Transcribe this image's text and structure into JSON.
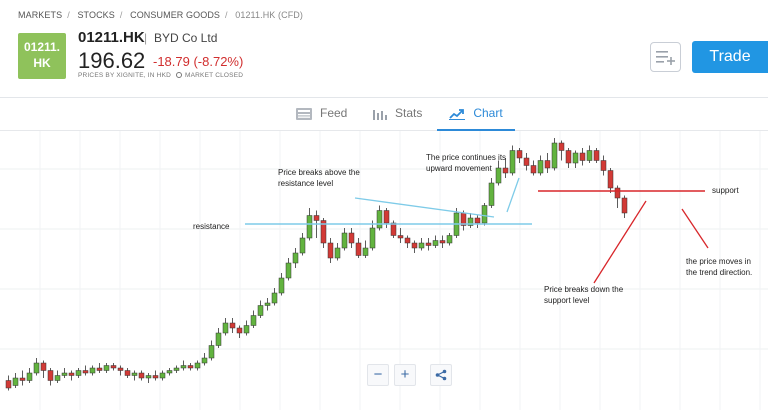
{
  "breadcrumb": [
    "MARKETS",
    "STOCKS",
    "CONSUMER GOODS",
    "01211.HK (CFD)"
  ],
  "tile": {
    "line1": "01211.",
    "line2": "HK",
    "color": "#8fc25b"
  },
  "instrument": {
    "symbol": "01211.HK",
    "company": "BYD Co Ltd",
    "price": "196.62",
    "change": "-18.79 (-8.72%)",
    "prices_by": "PRICES BY XIGNITE, IN HKD",
    "market_status": "MARKET CLOSED"
  },
  "actions": {
    "watchlist_icon": "add-to-list-icon",
    "trade_label": "Trade",
    "trade_color": "#2196e3"
  },
  "tabs": [
    {
      "label": "Feed",
      "icon": "feed-icon",
      "active": false
    },
    {
      "label": "Stats",
      "icon": "stats-icon",
      "active": false
    },
    {
      "label": "Chart",
      "icon": "chart-icon",
      "active": true
    }
  ],
  "annotations": {
    "breaks_above": "Price breaks above the\nresistance level",
    "continues": "The price continues its\nupward movement",
    "resistance": "resistance",
    "support": "support",
    "breaks_down": "Price breaks down the\nsupport level",
    "trend": "the price moves in\nthe trend direction."
  },
  "chart_data": {
    "type": "candlestick",
    "up_color": "#62b33f",
    "down_color": "#d23a36",
    "resistance_color": "#7ecbe8",
    "support_color": "#d8262a",
    "candles": [
      {
        "o": 0.05,
        "c": 0.02,
        "h": 0.07,
        "l": 0.01
      },
      {
        "o": 0.03,
        "c": 0.06,
        "h": 0.08,
        "l": 0.02
      },
      {
        "o": 0.06,
        "c": 0.05,
        "h": 0.09,
        "l": 0.03
      },
      {
        "o": 0.05,
        "c": 0.08,
        "h": 0.1,
        "l": 0.04
      },
      {
        "o": 0.08,
        "c": 0.12,
        "h": 0.14,
        "l": 0.07
      },
      {
        "o": 0.12,
        "c": 0.09,
        "h": 0.13,
        "l": 0.06
      },
      {
        "o": 0.09,
        "c": 0.05,
        "h": 0.1,
        "l": 0.03
      },
      {
        "o": 0.05,
        "c": 0.07,
        "h": 0.09,
        "l": 0.04
      },
      {
        "o": 0.07,
        "c": 0.08,
        "h": 0.1,
        "l": 0.06
      },
      {
        "o": 0.08,
        "c": 0.07,
        "h": 0.09,
        "l": 0.05
      },
      {
        "o": 0.07,
        "c": 0.09,
        "h": 0.1,
        "l": 0.06
      },
      {
        "o": 0.09,
        "c": 0.08,
        "h": 0.11,
        "l": 0.07
      },
      {
        "o": 0.08,
        "c": 0.1,
        "h": 0.11,
        "l": 0.07
      },
      {
        "o": 0.1,
        "c": 0.09,
        "h": 0.12,
        "l": 0.08
      },
      {
        "o": 0.09,
        "c": 0.11,
        "h": 0.12,
        "l": 0.08
      },
      {
        "o": 0.11,
        "c": 0.1,
        "h": 0.12,
        "l": 0.09
      },
      {
        "o": 0.1,
        "c": 0.09,
        "h": 0.11,
        "l": 0.07
      },
      {
        "o": 0.09,
        "c": 0.07,
        "h": 0.1,
        "l": 0.06
      },
      {
        "o": 0.07,
        "c": 0.08,
        "h": 0.09,
        "l": 0.05
      },
      {
        "o": 0.08,
        "c": 0.06,
        "h": 0.09,
        "l": 0.05
      },
      {
        "o": 0.06,
        "c": 0.07,
        "h": 0.08,
        "l": 0.04
      },
      {
        "o": 0.07,
        "c": 0.06,
        "h": 0.09,
        "l": 0.05
      },
      {
        "o": 0.06,
        "c": 0.08,
        "h": 0.09,
        "l": 0.05
      },
      {
        "o": 0.08,
        "c": 0.09,
        "h": 0.1,
        "l": 0.07
      },
      {
        "o": 0.09,
        "c": 0.1,
        "h": 0.11,
        "l": 0.08
      },
      {
        "o": 0.1,
        "c": 0.11,
        "h": 0.13,
        "l": 0.09
      },
      {
        "o": 0.11,
        "c": 0.1,
        "h": 0.12,
        "l": 0.09
      },
      {
        "o": 0.1,
        "c": 0.12,
        "h": 0.13,
        "l": 0.09
      },
      {
        "o": 0.12,
        "c": 0.14,
        "h": 0.16,
        "l": 0.11
      },
      {
        "o": 0.14,
        "c": 0.19,
        "h": 0.21,
        "l": 0.13
      },
      {
        "o": 0.19,
        "c": 0.24,
        "h": 0.26,
        "l": 0.18
      },
      {
        "o": 0.24,
        "c": 0.28,
        "h": 0.3,
        "l": 0.23
      },
      {
        "o": 0.28,
        "c": 0.26,
        "h": 0.3,
        "l": 0.24
      },
      {
        "o": 0.26,
        "c": 0.24,
        "h": 0.27,
        "l": 0.22
      },
      {
        "o": 0.24,
        "c": 0.27,
        "h": 0.29,
        "l": 0.23
      },
      {
        "o": 0.27,
        "c": 0.31,
        "h": 0.33,
        "l": 0.26
      },
      {
        "o": 0.31,
        "c": 0.35,
        "h": 0.37,
        "l": 0.3
      },
      {
        "o": 0.35,
        "c": 0.36,
        "h": 0.38,
        "l": 0.33
      },
      {
        "o": 0.36,
        "c": 0.4,
        "h": 0.42,
        "l": 0.35
      },
      {
        "o": 0.4,
        "c": 0.46,
        "h": 0.48,
        "l": 0.39
      },
      {
        "o": 0.46,
        "c": 0.52,
        "h": 0.54,
        "l": 0.45
      },
      {
        "o": 0.52,
        "c": 0.56,
        "h": 0.58,
        "l": 0.5
      },
      {
        "o": 0.56,
        "c": 0.62,
        "h": 0.64,
        "l": 0.55
      },
      {
        "o": 0.62,
        "c": 0.71,
        "h": 0.74,
        "l": 0.61
      },
      {
        "o": 0.71,
        "c": 0.69,
        "h": 0.73,
        "l": 0.62
      },
      {
        "o": 0.69,
        "c": 0.6,
        "h": 0.7,
        "l": 0.58
      },
      {
        "o": 0.6,
        "c": 0.54,
        "h": 0.62,
        "l": 0.52
      },
      {
        "o": 0.54,
        "c": 0.58,
        "h": 0.6,
        "l": 0.53
      },
      {
        "o": 0.58,
        "c": 0.64,
        "h": 0.66,
        "l": 0.57
      },
      {
        "o": 0.64,
        "c": 0.6,
        "h": 0.66,
        "l": 0.58
      },
      {
        "o": 0.6,
        "c": 0.55,
        "h": 0.62,
        "l": 0.54
      },
      {
        "o": 0.55,
        "c": 0.58,
        "h": 0.61,
        "l": 0.54
      },
      {
        "o": 0.58,
        "c": 0.66,
        "h": 0.69,
        "l": 0.57
      },
      {
        "o": 0.66,
        "c": 0.73,
        "h": 0.75,
        "l": 0.65
      },
      {
        "o": 0.73,
        "c": 0.68,
        "h": 0.74,
        "l": 0.66
      },
      {
        "o": 0.68,
        "c": 0.63,
        "h": 0.69,
        "l": 0.62
      },
      {
        "o": 0.63,
        "c": 0.62,
        "h": 0.66,
        "l": 0.6
      },
      {
        "o": 0.62,
        "c": 0.6,
        "h": 0.63,
        "l": 0.58
      },
      {
        "o": 0.6,
        "c": 0.58,
        "h": 0.61,
        "l": 0.56
      },
      {
        "o": 0.58,
        "c": 0.6,
        "h": 0.62,
        "l": 0.57
      },
      {
        "o": 0.6,
        "c": 0.59,
        "h": 0.62,
        "l": 0.57
      },
      {
        "o": 0.59,
        "c": 0.61,
        "h": 0.63,
        "l": 0.58
      },
      {
        "o": 0.61,
        "c": 0.6,
        "h": 0.63,
        "l": 0.58
      },
      {
        "o": 0.6,
        "c": 0.63,
        "h": 0.64,
        "l": 0.59
      },
      {
        "o": 0.63,
        "c": 0.72,
        "h": 0.74,
        "l": 0.62
      },
      {
        "o": 0.72,
        "c": 0.67,
        "h": 0.73,
        "l": 0.65
      },
      {
        "o": 0.67,
        "c": 0.7,
        "h": 0.72,
        "l": 0.66
      },
      {
        "o": 0.7,
        "c": 0.68,
        "h": 0.71,
        "l": 0.66
      },
      {
        "o": 0.68,
        "c": 0.75,
        "h": 0.76,
        "l": 0.67
      },
      {
        "o": 0.75,
        "c": 0.84,
        "h": 0.86,
        "l": 0.74
      },
      {
        "o": 0.84,
        "c": 0.9,
        "h": 0.93,
        "l": 0.83
      },
      {
        "o": 0.9,
        "c": 0.88,
        "h": 0.94,
        "l": 0.86
      },
      {
        "o": 0.88,
        "c": 0.97,
        "h": 0.99,
        "l": 0.87
      },
      {
        "o": 0.97,
        "c": 0.94,
        "h": 0.98,
        "l": 0.92
      },
      {
        "o": 0.94,
        "c": 0.91,
        "h": 0.96,
        "l": 0.89
      },
      {
        "o": 0.91,
        "c": 0.88,
        "h": 0.93,
        "l": 0.87
      },
      {
        "o": 0.88,
        "c": 0.93,
        "h": 0.95,
        "l": 0.87
      },
      {
        "o": 0.93,
        "c": 0.9,
        "h": 0.96,
        "l": 0.88
      },
      {
        "o": 0.9,
        "c": 1.0,
        "h": 1.02,
        "l": 0.89
      },
      {
        "o": 1.0,
        "c": 0.97,
        "h": 1.01,
        "l": 0.93
      },
      {
        "o": 0.97,
        "c": 0.92,
        "h": 0.98,
        "l": 0.9
      },
      {
        "o": 0.92,
        "c": 0.96,
        "h": 0.97,
        "l": 0.9
      },
      {
        "o": 0.96,
        "c": 0.93,
        "h": 0.98,
        "l": 0.91
      },
      {
        "o": 0.93,
        "c": 0.97,
        "h": 0.99,
        "l": 0.92
      },
      {
        "o": 0.97,
        "c": 0.93,
        "h": 0.98,
        "l": 0.92
      },
      {
        "o": 0.93,
        "c": 0.89,
        "h": 0.95,
        "l": 0.87
      },
      {
        "o": 0.89,
        "c": 0.82,
        "h": 0.9,
        "l": 0.8
      },
      {
        "o": 0.82,
        "c": 0.78,
        "h": 0.83,
        "l": 0.74
      },
      {
        "o": 0.78,
        "c": 0.72,
        "h": 0.79,
        "l": 0.7
      }
    ],
    "resistance": 0.66,
    "support": 0.88
  }
}
